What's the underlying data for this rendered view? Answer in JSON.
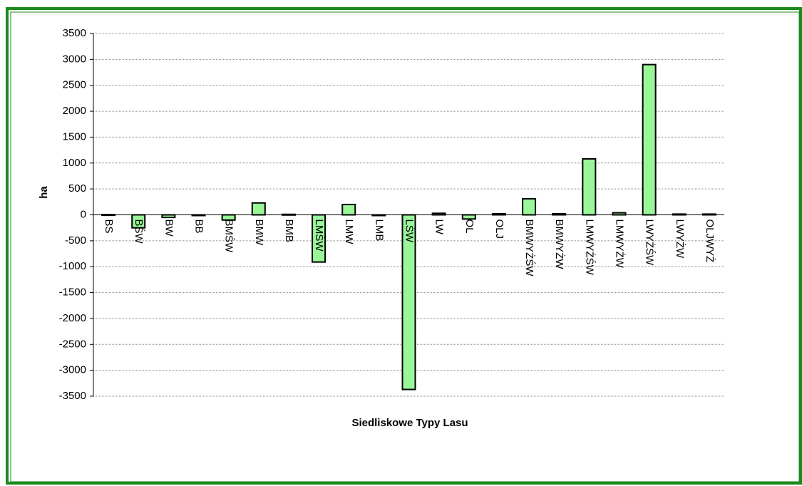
{
  "chart_data": {
    "type": "bar",
    "x_label": "Siedliskowe Typy Lasu",
    "y_label": "ha",
    "categories": [
      "BS",
      "BŚW",
      "BW",
      "BB",
      "BMŚW",
      "BMW",
      "BMB",
      "LMŚW",
      "LMW",
      "LMB",
      "LŚW",
      "LW",
      "OL",
      "OLJ",
      "BMWYŻŚW",
      "BMWYŻW",
      "LMWYŻŚW",
      "LMWYŻW",
      "LWYŻŚW",
      "LWYŻW",
      "OLJWYŻ"
    ],
    "values": [
      5,
      -250,
      -50,
      0,
      -100,
      230,
      10,
      -910,
      200,
      0,
      -3370,
      30,
      -80,
      20,
      310,
      20,
      1080,
      40,
      2900,
      15,
      15
    ],
    "color": "#99f799",
    "ylim": [
      -3500,
      3500
    ],
    "yticks": [
      -3500,
      -3000,
      -2500,
      -2000,
      -1500,
      -1000,
      -500,
      0,
      500,
      1000,
      1500,
      2000,
      2500,
      3000,
      3500
    ],
    "grid": true
  }
}
